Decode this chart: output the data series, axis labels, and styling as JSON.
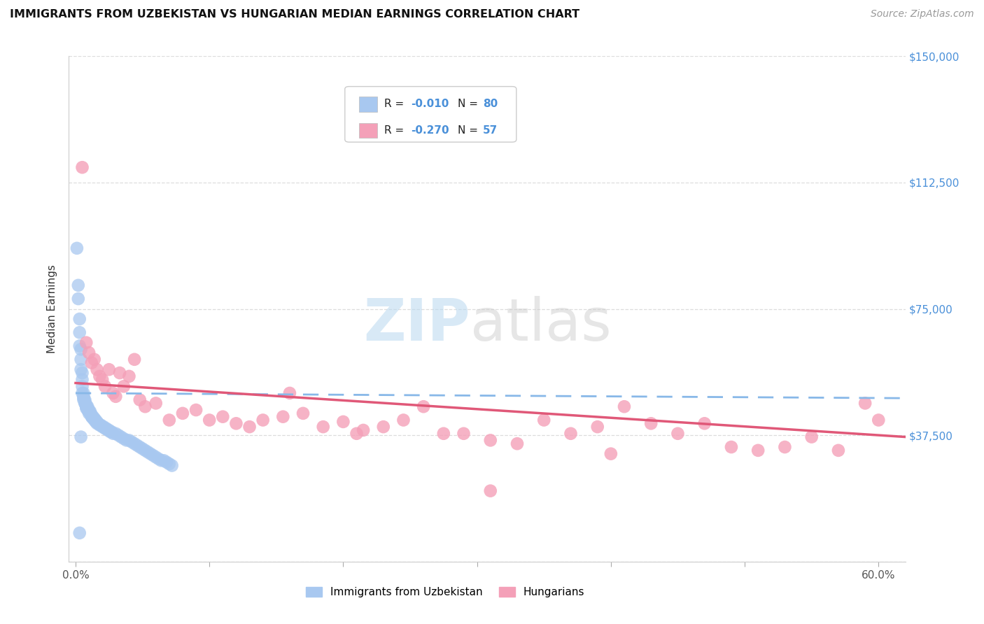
{
  "title": "IMMIGRANTS FROM UZBEKISTAN VS HUNGARIAN MEDIAN EARNINGS CORRELATION CHART",
  "source": "Source: ZipAtlas.com",
  "ylabel": "Median Earnings",
  "xlim": [
    -0.005,
    0.62
  ],
  "ylim": [
    0,
    150000
  ],
  "yticks": [
    0,
    37500,
    75000,
    112500,
    150000
  ],
  "ytick_labels": [
    "",
    "$37,500",
    "$75,000",
    "$112,500",
    "$150,000"
  ],
  "xticks": [
    0.0,
    0.1,
    0.2,
    0.3,
    0.4,
    0.5,
    0.6
  ],
  "xtick_labels": [
    "0.0%",
    "",
    "",
    "",
    "",
    "",
    "60.0%"
  ],
  "blue_color": "#a8c8f0",
  "pink_color": "#f4a0b8",
  "blue_line_color": "#88b8e8",
  "pink_line_color": "#e05878",
  "right_label_color": "#4a90d9",
  "legend_r1": "R = -0.010",
  "legend_n1": "N = 80",
  "legend_r2": "R = -0.270",
  "legend_n2": "N = 57",
  "blue_scatter_x": [
    0.001,
    0.002,
    0.002,
    0.003,
    0.003,
    0.003,
    0.004,
    0.004,
    0.004,
    0.005,
    0.005,
    0.005,
    0.005,
    0.006,
    0.006,
    0.006,
    0.006,
    0.007,
    0.007,
    0.007,
    0.007,
    0.008,
    0.008,
    0.008,
    0.008,
    0.009,
    0.009,
    0.009,
    0.01,
    0.01,
    0.01,
    0.011,
    0.011,
    0.012,
    0.012,
    0.012,
    0.013,
    0.013,
    0.014,
    0.014,
    0.015,
    0.015,
    0.016,
    0.016,
    0.017,
    0.018,
    0.019,
    0.02,
    0.021,
    0.022,
    0.023,
    0.024,
    0.025,
    0.026,
    0.027,
    0.028,
    0.03,
    0.032,
    0.034,
    0.036,
    0.038,
    0.04,
    0.042,
    0.044,
    0.046,
    0.048,
    0.05,
    0.052,
    0.054,
    0.056,
    0.058,
    0.06,
    0.062,
    0.064,
    0.066,
    0.068,
    0.07,
    0.072,
    0.004,
    0.003
  ],
  "blue_scatter_y": [
    93000,
    82000,
    78000,
    72000,
    68000,
    64000,
    63000,
    60000,
    57000,
    56000,
    54000,
    52000,
    50000,
    50000,
    49000,
    48500,
    48000,
    48000,
    47500,
    47000,
    47000,
    46500,
    46000,
    46000,
    45500,
    46000,
    45500,
    45000,
    45000,
    44500,
    44000,
    44500,
    44000,
    43500,
    43000,
    43000,
    43000,
    42500,
    42500,
    42000,
    42000,
    41500,
    41500,
    41000,
    41000,
    40500,
    40500,
    40000,
    40000,
    39500,
    39500,
    39000,
    39000,
    38500,
    38500,
    38000,
    38000,
    37500,
    37000,
    36500,
    36000,
    36000,
    35500,
    35000,
    34500,
    34000,
    33500,
    33000,
    32500,
    32000,
    31500,
    31000,
    30500,
    30000,
    30000,
    29500,
    29000,
    28500,
    37000,
    8500
  ],
  "pink_scatter_x": [
    0.005,
    0.008,
    0.01,
    0.012,
    0.014,
    0.016,
    0.018,
    0.02,
    0.022,
    0.025,
    0.028,
    0.03,
    0.033,
    0.036,
    0.04,
    0.044,
    0.048,
    0.052,
    0.06,
    0.07,
    0.08,
    0.09,
    0.1,
    0.11,
    0.12,
    0.13,
    0.14,
    0.155,
    0.17,
    0.185,
    0.2,
    0.215,
    0.23,
    0.245,
    0.26,
    0.275,
    0.29,
    0.31,
    0.33,
    0.35,
    0.37,
    0.39,
    0.41,
    0.43,
    0.45,
    0.47,
    0.49,
    0.51,
    0.53,
    0.55,
    0.57,
    0.59,
    0.6,
    0.31,
    0.4,
    0.16,
    0.21
  ],
  "pink_scatter_y": [
    117000,
    65000,
    62000,
    59000,
    60000,
    57000,
    55000,
    54000,
    52000,
    57000,
    50000,
    49000,
    56000,
    52000,
    55000,
    60000,
    48000,
    46000,
    47000,
    42000,
    44000,
    45000,
    42000,
    43000,
    41000,
    40000,
    42000,
    43000,
    44000,
    40000,
    41500,
    39000,
    40000,
    42000,
    46000,
    38000,
    38000,
    36000,
    35000,
    42000,
    38000,
    40000,
    46000,
    41000,
    38000,
    41000,
    34000,
    33000,
    34000,
    37000,
    33000,
    47000,
    42000,
    21000,
    32000,
    50000,
    38000
  ]
}
